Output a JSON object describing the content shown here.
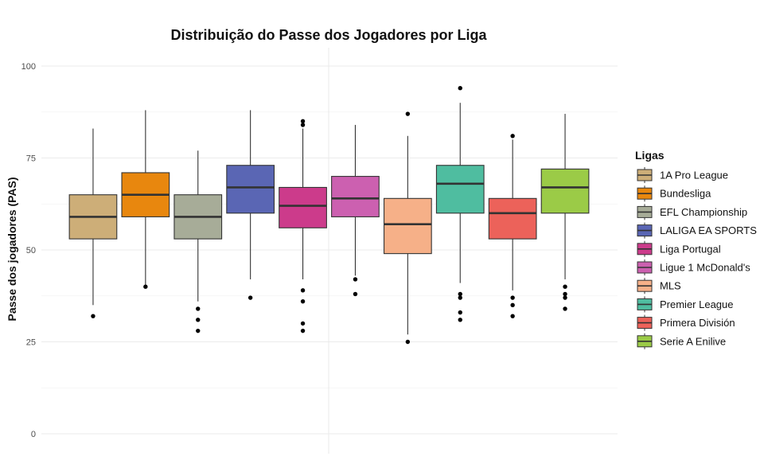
{
  "chart_data": {
    "type": "boxplot",
    "title": "Distribuição do Passe dos Jogadores por Liga",
    "xlabel": "",
    "ylabel": "Passe dos jogadores (PAS)",
    "ylim": [
      0,
      100
    ],
    "yticks": [
      0,
      25,
      50,
      75,
      100
    ],
    "grid": true,
    "legend": {
      "title": "Ligas",
      "position": "right"
    },
    "series": [
      {
        "name": "1A Pro League",
        "color": "#CDAE78",
        "whisker_low": 35,
        "q1": 53,
        "median": 59,
        "q3": 65,
        "whisker_high": 83,
        "outliers": [
          32
        ]
      },
      {
        "name": "Bundesliga",
        "color": "#E8870E",
        "whisker_low": 40,
        "q1": 59,
        "median": 65,
        "q3": 71,
        "whisker_high": 88,
        "outliers": [
          40
        ]
      },
      {
        "name": "EFL Championship",
        "color": "#A7AC98",
        "whisker_low": 36,
        "q1": 53,
        "median": 59,
        "q3": 65,
        "whisker_high": 77,
        "outliers": [
          34,
          31,
          28
        ]
      },
      {
        "name": "LALIGA EA SPORTS",
        "color": "#5A66B4",
        "whisker_low": 42,
        "q1": 60,
        "median": 67,
        "q3": 73,
        "whisker_high": 88,
        "outliers": [
          37
        ]
      },
      {
        "name": "Liga Portugal",
        "color": "#CC3B8B",
        "whisker_low": 42,
        "q1": 56,
        "median": 62,
        "q3": 67,
        "whisker_high": 83,
        "outliers": [
          85,
          84,
          39,
          36,
          30,
          28
        ]
      },
      {
        "name": "Ligue 1 McDonald's",
        "color": "#CC60B0",
        "whisker_low": 43,
        "q1": 59,
        "median": 64,
        "q3": 70,
        "whisker_high": 84,
        "outliers": [
          42,
          38
        ]
      },
      {
        "name": "MLS",
        "color": "#F6B088",
        "whisker_low": 27,
        "q1": 49,
        "median": 57,
        "q3": 64,
        "whisker_high": 81,
        "outliers": [
          87,
          25
        ]
      },
      {
        "name": "Premier League",
        "color": "#4FBDA0",
        "whisker_low": 41,
        "q1": 60,
        "median": 68,
        "q3": 73,
        "whisker_high": 90,
        "outliers": [
          94,
          38,
          37,
          33,
          31
        ]
      },
      {
        "name": "Primera División",
        "color": "#EC625A",
        "whisker_low": 39,
        "q1": 53,
        "median": 60,
        "q3": 64,
        "whisker_high": 80,
        "outliers": [
          81,
          37,
          35,
          32
        ]
      },
      {
        "name": "Serie A Enilive",
        "color": "#9BCB47",
        "whisker_low": 42,
        "q1": 60,
        "median": 67,
        "q3": 72,
        "whisker_high": 87,
        "outliers": [
          40,
          38,
          37,
          34
        ]
      }
    ]
  }
}
